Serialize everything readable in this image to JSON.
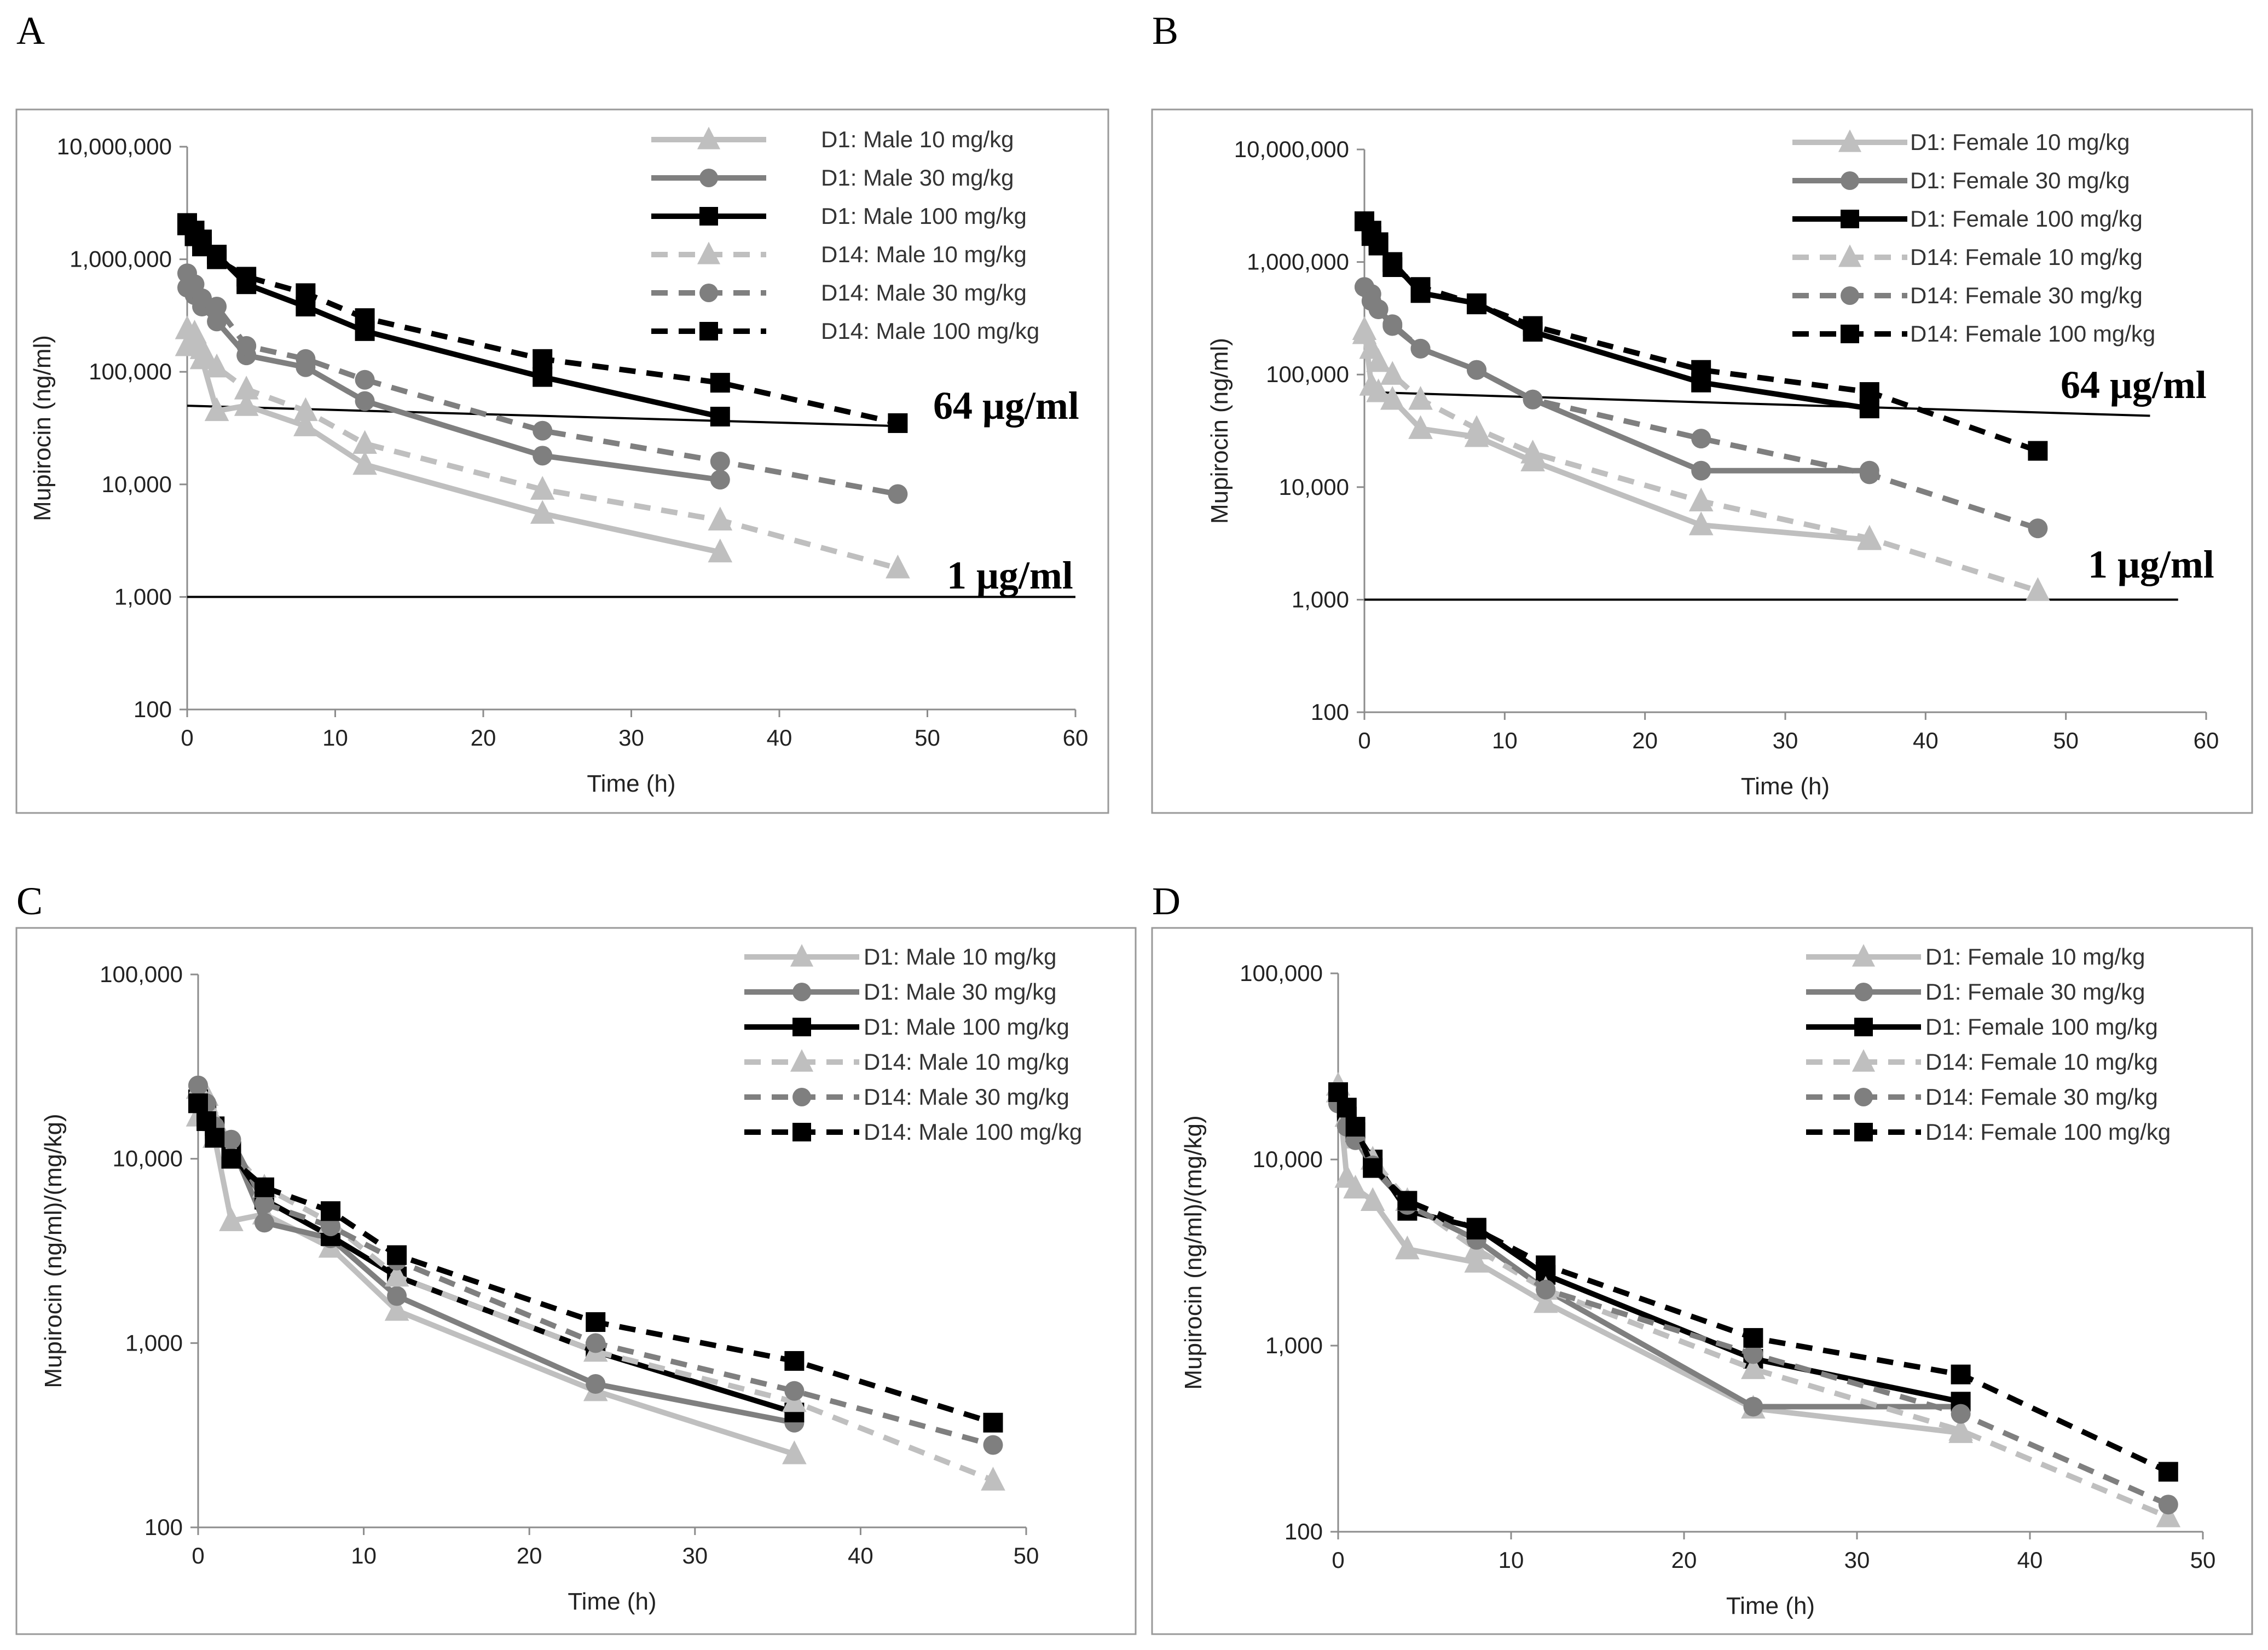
{
  "figure": {
    "panels": [
      "A",
      "B",
      "C",
      "D"
    ]
  },
  "series_styles": [
    {
      "color": "#BFBFBF",
      "dash": false,
      "marker": "triangle"
    },
    {
      "color": "#7F7F7F",
      "dash": false,
      "marker": "circle"
    },
    {
      "color": "#000000",
      "dash": false,
      "marker": "square"
    },
    {
      "color": "#BFBFBF",
      "dash": true,
      "marker": "triangle"
    },
    {
      "color": "#7F7F7F",
      "dash": true,
      "marker": "circle"
    },
    {
      "color": "#000000",
      "dash": true,
      "marker": "square"
    }
  ],
  "chart_data": [
    {
      "panel": "A",
      "type": "line",
      "scale": "log",
      "xlabel": "Time (h)",
      "ylabel": "Mupirocin (ng/ml)",
      "xlim": [
        0,
        60
      ],
      "xticks": [
        "0",
        "10",
        "20",
        "30",
        "40",
        "50",
        "60"
      ],
      "ylim": [
        100,
        10000000
      ],
      "yticks": [
        "100",
        "1,000",
        "10,000",
        "100,000",
        "1,000,000",
        "10,000,000"
      ],
      "reference_lines": [
        {
          "label": "64 μg/ml",
          "x": [
            0,
            48
          ],
          "y": [
            50000,
            33000
          ]
        },
        {
          "label": "1 μg/ml",
          "x": [
            0,
            60
          ],
          "y": [
            1000,
            1000
          ]
        }
      ],
      "series": [
        {
          "name": "D1: Male 10 mg/kg",
          "x": [
            0,
            0.5,
            1,
            2,
            4,
            8,
            12,
            24,
            36
          ],
          "y": [
            170000,
            220000,
            130000,
            45000,
            50000,
            33000,
            15000,
            5500,
            2500
          ]
        },
        {
          "name": "D1: Male 30 mg/kg",
          "x": [
            0,
            0.5,
            1,
            2,
            4,
            8,
            12,
            24,
            36
          ],
          "y": [
            560000,
            480000,
            380000,
            280000,
            140000,
            110000,
            55000,
            18000,
            11000
          ]
        },
        {
          "name": "D1: Male 100 mg/kg",
          "x": [
            0,
            0.5,
            1,
            2,
            4,
            8,
            12,
            24,
            36
          ],
          "y": [
            2100000,
            1800000,
            1500000,
            1100000,
            600000,
            380000,
            230000,
            90000,
            40000
          ]
        },
        {
          "name": "D14: Male 10 mg/kg",
          "x": [
            0,
            0.5,
            1,
            2,
            4,
            8,
            12,
            24,
            36,
            48
          ],
          "y": [
            240000,
            200000,
            160000,
            110000,
            70000,
            45000,
            23000,
            9000,
            4800,
            1800
          ]
        },
        {
          "name": "D14: Male 30 mg/kg",
          "x": [
            0,
            0.5,
            1,
            2,
            4,
            8,
            12,
            24,
            36,
            48
          ],
          "y": [
            750000,
            600000,
            450000,
            380000,
            170000,
            130000,
            85000,
            30000,
            16000,
            8200
          ]
        },
        {
          "name": "D14: Male 100 mg/kg",
          "x": [
            0,
            0.5,
            1,
            2,
            4,
            8,
            12,
            24,
            36,
            48
          ],
          "y": [
            2000000,
            1600000,
            1300000,
            1000000,
            700000,
            500000,
            300000,
            130000,
            80000,
            35000
          ]
        }
      ]
    },
    {
      "panel": "B",
      "type": "line",
      "scale": "log",
      "xlabel": "Time (h)",
      "ylabel": "Mupirocin (ng/ml)",
      "xlim": [
        0,
        60
      ],
      "xticks": [
        "0",
        "10",
        "20",
        "30",
        "40",
        "50",
        "60"
      ],
      "ylim": [
        100,
        10000000
      ],
      "yticks": [
        "100",
        "1,000",
        "10,000",
        "100,000",
        "1,000,000",
        "10,000,000"
      ],
      "reference_lines": [
        {
          "label": "64 μg/ml",
          "x": [
            0,
            56
          ],
          "y": [
            70000,
            43000
          ]
        },
        {
          "label": "1 μg/ml",
          "x": [
            0,
            58
          ],
          "y": [
            1000,
            1000
          ]
        }
      ],
      "series": [
        {
          "name": "D1: Female 10 mg/kg",
          "x": [
            0,
            0.5,
            1,
            2,
            4,
            8,
            12,
            24,
            36
          ],
          "y": [
            250000,
            80000,
            70000,
            60000,
            33000,
            28000,
            17000,
            4600,
            3400
          ]
        },
        {
          "name": "D1: Female 30 mg/kg",
          "x": [
            0,
            0.5,
            1,
            2,
            4,
            8,
            12,
            24,
            36
          ],
          "y": [
            600000,
            520000,
            380000,
            270000,
            170000,
            110000,
            60000,
            14000,
            14000
          ]
        },
        {
          "name": "D1: Female 100 mg/kg",
          "x": [
            0,
            0.5,
            1,
            2,
            4,
            8,
            12,
            24,
            36
          ],
          "y": [
            2300000,
            1700000,
            1400000,
            1000000,
            530000,
            430000,
            240000,
            85000,
            50000
          ]
        },
        {
          "name": "D14: Female 10 mg/kg",
          "x": [
            0,
            0.5,
            1,
            2,
            4,
            8,
            12,
            24,
            36,
            48
          ],
          "y": [
            230000,
            170000,
            130000,
            100000,
            60000,
            33000,
            20000,
            7500,
            3500,
            1200
          ]
        },
        {
          "name": "D14: Female 30 mg/kg",
          "x": [
            0,
            0.5,
            1,
            2,
            4,
            8,
            12,
            24,
            36,
            48
          ],
          "y": [
            600000,
            450000,
            380000,
            280000,
            170000,
            110000,
            60000,
            27000,
            13000,
            4300
          ]
        },
        {
          "name": "D14: Female 100 mg/kg",
          "x": [
            0,
            0.5,
            1,
            2,
            4,
            8,
            12,
            24,
            36,
            48
          ],
          "y": [
            2300000,
            1900000,
            1500000,
            900000,
            600000,
            420000,
            270000,
            110000,
            70000,
            21000
          ]
        }
      ]
    },
    {
      "panel": "C",
      "type": "line",
      "scale": "log",
      "xlabel": "Time (h)",
      "ylabel": "Mupirocin (ng/ml)/(mg/kg)",
      "xlim": [
        0,
        50
      ],
      "xticks": [
        "0",
        "10",
        "20",
        "30",
        "40",
        "50"
      ],
      "ylim": [
        100,
        100000
      ],
      "yticks": [
        "100",
        "1,000",
        "10,000",
        "100,000"
      ],
      "reference_lines": [],
      "series": [
        {
          "name": "D1: Male 10 mg/kg",
          "x": [
            0,
            0.5,
            1,
            2,
            4,
            8,
            12,
            24,
            36
          ],
          "y": [
            17000,
            22000,
            13000,
            4600,
            5000,
            3300,
            1500,
            550,
            250
          ]
        },
        {
          "name": "D1: Male 30 mg/kg",
          "x": [
            0,
            0.5,
            1,
            2,
            4,
            8,
            12,
            24,
            36
          ],
          "y": [
            25000,
            16000,
            13000,
            12000,
            4500,
            3700,
            1800,
            600,
            370
          ]
        },
        {
          "name": "D1: Male 100 mg/kg",
          "x": [
            0,
            0.5,
            1,
            2,
            4,
            8,
            12,
            24,
            36
          ],
          "y": [
            21000,
            18000,
            15000,
            11000,
            6000,
            3800,
            2300,
            900,
            420
          ]
        },
        {
          "name": "D14: Male 10 mg/kg",
          "x": [
            0,
            0.5,
            1,
            2,
            4,
            8,
            12,
            24,
            36,
            48
          ],
          "y": [
            24000,
            20000,
            16000,
            11000,
            7000,
            4500,
            2300,
            900,
            480,
            180
          ]
        },
        {
          "name": "D14: Male 30 mg/kg",
          "x": [
            0,
            0.5,
            1,
            2,
            4,
            8,
            12,
            24,
            36,
            48
          ],
          "y": [
            25000,
            20000,
            15000,
            12700,
            5700,
            4300,
            2800,
            1000,
            550,
            280
          ]
        },
        {
          "name": "D14: Male 100 mg/kg",
          "x": [
            0,
            0.5,
            1,
            2,
            4,
            8,
            12,
            24,
            36,
            48
          ],
          "y": [
            20000,
            16000,
            13000,
            10000,
            7000,
            5200,
            3000,
            1300,
            800,
            370
          ]
        }
      ]
    },
    {
      "panel": "D",
      "type": "line",
      "scale": "log",
      "xlabel": "Time (h)",
      "ylabel": "Mupirocin (ng/ml)/(mg/kg)",
      "xlim": [
        0,
        50
      ],
      "xticks": [
        "0",
        "10",
        "20",
        "30",
        "40",
        "50"
      ],
      "ylim": [
        100,
        100000
      ],
      "yticks": [
        "100",
        "1,000",
        "10,000",
        "100,000"
      ],
      "reference_lines": [],
      "series": [
        {
          "name": "D1: Female 10 mg/kg",
          "x": [
            0,
            0.5,
            1,
            2,
            4,
            8,
            12,
            24,
            36
          ],
          "y": [
            25000,
            8000,
            7000,
            6000,
            3300,
            2800,
            1700,
            460,
            340
          ]
        },
        {
          "name": "D1: Female 30 mg/kg",
          "x": [
            0,
            0.5,
            1,
            2,
            4,
            8,
            12,
            24,
            36
          ],
          "y": [
            20000,
            17000,
            13000,
            9000,
            5700,
            3700,
            2000,
            470,
            470
          ]
        },
        {
          "name": "D1: Female 100 mg/kg",
          "x": [
            0,
            0.5,
            1,
            2,
            4,
            8,
            12,
            24,
            36
          ],
          "y": [
            23000,
            17000,
            14000,
            10000,
            5300,
            4300,
            2400,
            850,
            500
          ]
        },
        {
          "name": "D14: Female 10 mg/kg",
          "x": [
            0,
            0.5,
            1,
            2,
            4,
            8,
            12,
            24,
            36,
            48
          ],
          "y": [
            23000,
            17000,
            13000,
            10000,
            6000,
            3300,
            2000,
            750,
            350,
            120
          ]
        },
        {
          "name": "D14: Female 30 mg/kg",
          "x": [
            0,
            0.5,
            1,
            2,
            4,
            8,
            12,
            24,
            36,
            48
          ],
          "y": [
            20000,
            15000,
            12700,
            9300,
            5700,
            3700,
            2000,
            900,
            430,
            140
          ]
        },
        {
          "name": "D14: Female 100 mg/kg",
          "x": [
            0,
            0.5,
            1,
            2,
            4,
            8,
            12,
            24,
            36,
            48
          ],
          "y": [
            23000,
            19000,
            15000,
            9000,
            6000,
            4200,
            2700,
            1100,
            700,
            210
          ]
        }
      ]
    }
  ]
}
